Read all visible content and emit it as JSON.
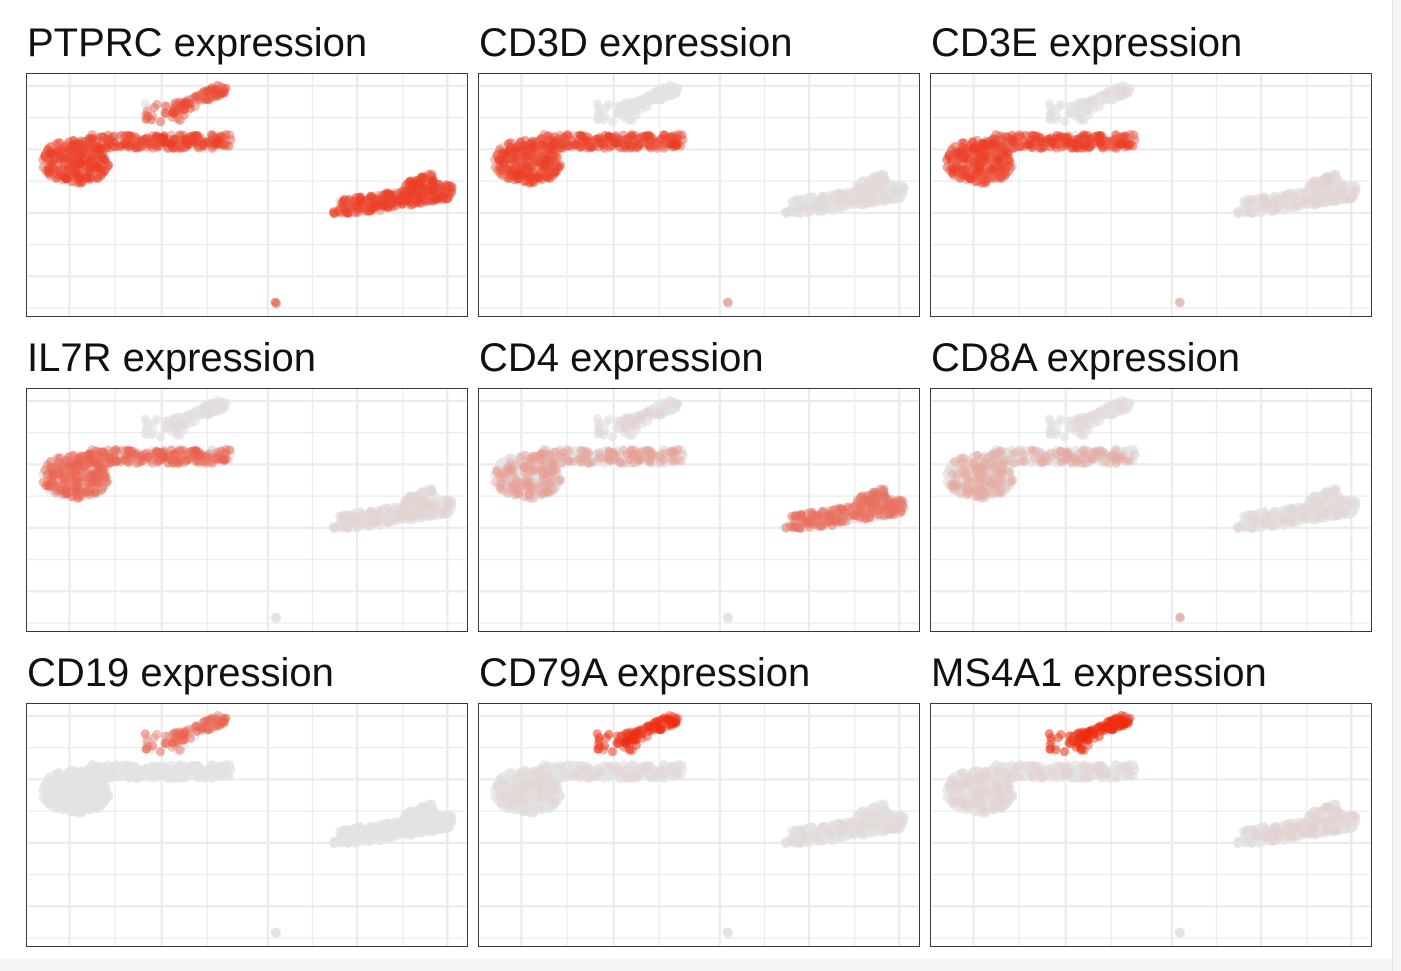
{
  "chart_data": {
    "type": "scatter",
    "layout": "3x3 facet grid",
    "axes_visible": false,
    "grid": true,
    "colors": {
      "low": "#e3e3e3",
      "high": "#ee2a0e",
      "grid": "#ebebeb",
      "border": "#3a3a3a"
    },
    "clusters": [
      {
        "id": "upper-left-top",
        "shape": "small elongated cluster near top"
      },
      {
        "id": "upper-left-main",
        "shape": "large horizontal band with dense left lobe"
      },
      {
        "id": "right",
        "shape": "diagonal elongated cluster on right"
      },
      {
        "id": "bottom-dot",
        "shape": "single small point near bottom"
      }
    ],
    "panels": [
      {
        "gene": "PTPRC",
        "title": "PTPRC expression",
        "expression": {
          "upper-left-top": 0.65,
          "upper-left-main": 0.7,
          "right": 0.7,
          "bottom-dot": 0.6
        }
      },
      {
        "gene": "CD3D",
        "title": "CD3D expression",
        "expression": {
          "upper-left-top": 0.0,
          "upper-left-main": 0.7,
          "right": 0.05,
          "bottom-dot": 0.3
        }
      },
      {
        "gene": "CD3E",
        "title": "CD3E expression",
        "expression": {
          "upper-left-top": 0.05,
          "upper-left-main": 0.7,
          "right": 0.08,
          "bottom-dot": 0.2
        }
      },
      {
        "gene": "IL7R",
        "title": "IL7R expression",
        "expression": {
          "upper-left-top": 0.05,
          "upper-left-main": 0.55,
          "right": 0.08,
          "bottom-dot": 0.0
        }
      },
      {
        "gene": "CD4",
        "title": "CD4 expression",
        "expression": {
          "upper-left-top": 0.08,
          "upper-left-main": 0.3,
          "right": 0.5,
          "bottom-dot": 0.0
        }
      },
      {
        "gene": "CD8A",
        "title": "CD8A expression",
        "expression": {
          "upper-left-top": 0.05,
          "upper-left-main": 0.25,
          "right": 0.06,
          "bottom-dot": 0.4
        }
      },
      {
        "gene": "CD19",
        "title": "CD19 expression",
        "expression": {
          "upper-left-top": 0.55,
          "upper-left-main": 0.0,
          "right": 0.0,
          "bottom-dot": 0.0
        }
      },
      {
        "gene": "CD79A",
        "title": "CD79A expression",
        "expression": {
          "upper-left-top": 0.8,
          "upper-left-main": 0.06,
          "right": 0.05,
          "bottom-dot": 0.0
        }
      },
      {
        "gene": "MS4A1",
        "title": "MS4A1 expression",
        "expression": {
          "upper-left-top": 0.9,
          "upper-left-main": 0.08,
          "right": 0.08,
          "bottom-dot": 0.0
        }
      }
    ]
  }
}
